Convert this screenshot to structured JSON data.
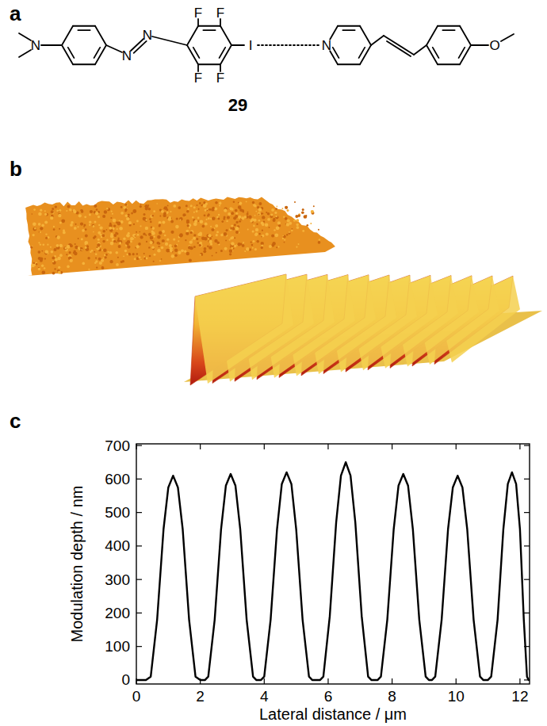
{
  "panel_labels": [
    "a",
    "b",
    "c"
  ],
  "structure": {
    "compound": "29",
    "atoms": [
      "N",
      "N",
      "N",
      "F",
      "F",
      "F",
      "F",
      "I",
      "N",
      "O"
    ]
  },
  "chart_data": {
    "type": "line",
    "x_label": "Lateral distance / μm",
    "y_label": "Modulation depth / nm",
    "xlim": [
      0,
      12.3
    ],
    "ylim": [
      -12,
      705
    ],
    "xticks": [
      0,
      2,
      4,
      6,
      8,
      10,
      12
    ],
    "yticks": [
      0,
      100,
      200,
      300,
      400,
      500,
      600,
      700
    ],
    "grid": false,
    "color": "#000000",
    "line_style": "solid",
    "x": [
      0,
      0.3,
      0.45,
      0.65,
      0.85,
      1.0,
      1.15,
      1.3,
      1.45,
      1.65,
      1.85,
      2.0,
      2.15,
      2.25,
      2.45,
      2.65,
      2.8,
      2.95,
      3.1,
      3.25,
      3.45,
      3.65,
      3.75,
      3.9,
      4.0,
      4.2,
      4.4,
      4.55,
      4.7,
      4.85,
      5.0,
      5.2,
      5.4,
      5.5,
      5.75,
      5.85,
      6.05,
      6.25,
      6.4,
      6.55,
      6.7,
      6.85,
      7.05,
      7.25,
      7.35,
      7.55,
      7.65,
      7.85,
      8.05,
      8.2,
      8.35,
      8.5,
      8.65,
      8.85,
      9.05,
      9.15,
      9.25,
      9.35,
      9.55,
      9.75,
      9.9,
      10.05,
      10.2,
      10.35,
      10.55,
      10.75,
      10.85,
      11.0,
      11.1,
      11.3,
      11.48,
      11.62,
      11.75,
      11.88,
      12.0,
      12.12,
      12.22,
      12.27,
      12.3
    ],
    "values": [
      0,
      0,
      10,
      180,
      450,
      575,
      610,
      575,
      450,
      180,
      10,
      0,
      0,
      10,
      180,
      450,
      580,
      615,
      580,
      450,
      180,
      10,
      0,
      0,
      10,
      180,
      450,
      585,
      620,
      585,
      450,
      180,
      10,
      0,
      0,
      10,
      190,
      470,
      610,
      650,
      610,
      470,
      190,
      10,
      0,
      0,
      10,
      180,
      450,
      580,
      615,
      580,
      450,
      180,
      10,
      0,
      0,
      10,
      180,
      450,
      575,
      610,
      575,
      450,
      180,
      10,
      0,
      0,
      10,
      180,
      450,
      585,
      620,
      585,
      450,
      180,
      10,
      0,
      0
    ]
  }
}
